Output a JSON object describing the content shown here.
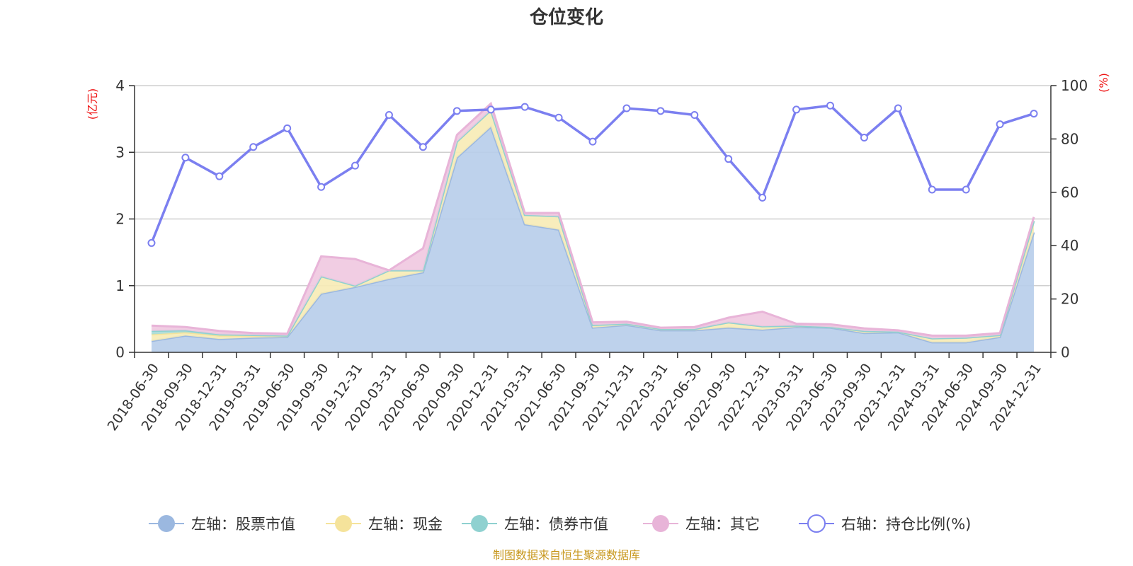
{
  "chart_data": {
    "type": "area",
    "title": "仓位变化",
    "source": "制图数据来自恒生聚源数据库",
    "left_axis": {
      "unit": "(亿元)",
      "ylim": [
        0,
        4
      ],
      "ticks": [
        "0",
        "1",
        "2",
        "3",
        "4"
      ]
    },
    "right_axis": {
      "unit": "(%)",
      "ylim": [
        0,
        100
      ],
      "ticks": [
        "0",
        "20",
        "40",
        "60",
        "80",
        "100"
      ]
    },
    "grid": true,
    "legend_position": "bottom",
    "categories": [
      "2018-06-30",
      "2018-09-30",
      "2018-12-31",
      "2019-03-31",
      "2019-06-30",
      "2019-09-30",
      "2019-12-31",
      "2020-03-31",
      "2020-06-30",
      "2020-09-30",
      "2020-12-31",
      "2021-03-31",
      "2021-06-30",
      "2021-09-30",
      "2021-12-31",
      "2022-03-31",
      "2022-06-30",
      "2022-09-30",
      "2022-12-31",
      "2023-03-31",
      "2023-06-30",
      "2023-09-30",
      "2023-12-31",
      "2024-03-31",
      "2024-06-30",
      "2024-09-30",
      "2024-12-31"
    ],
    "series": [
      {
        "name": "左轴：股票市值",
        "axis": "left",
        "type": "area",
        "color": "#9bb8e0",
        "fill": "#b7cdea",
        "values": [
          0.17,
          0.25,
          0.2,
          0.22,
          0.23,
          0.88,
          0.98,
          1.1,
          1.2,
          2.92,
          3.38,
          1.92,
          1.84,
          0.37,
          0.41,
          0.33,
          0.33,
          0.37,
          0.34,
          0.38,
          0.37,
          0.29,
          0.3,
          0.15,
          0.15,
          0.23,
          1.8
        ]
      },
      {
        "name": "左轴：现金",
        "axis": "left",
        "type": "area",
        "color": "#f5e39b",
        "fill": "#f7ebb5",
        "values": [
          0.1,
          0.05,
          0.05,
          0.03,
          0.02,
          0.26,
          0.02,
          0.13,
          0.03,
          0.24,
          0.25,
          0.14,
          0.2,
          0.04,
          0.02,
          0.02,
          0.02,
          0.08,
          0.05,
          0.02,
          0.01,
          0.03,
          0.01,
          0.06,
          0.07,
          0.03,
          0.17
        ]
      },
      {
        "name": "左轴：债券市值",
        "axis": "left",
        "type": "area",
        "color": "#8fd1d0",
        "fill": "#a9dcd9",
        "values": [
          0.05,
          0.03,
          0.02,
          0.01,
          0.0,
          0.0,
          0.0,
          0.0,
          0.0,
          0.0,
          0.0,
          0.0,
          0.0,
          0.0,
          0.0,
          0.0,
          0.0,
          0.0,
          0.0,
          0.0,
          0.0,
          0.0,
          0.0,
          0.0,
          0.0,
          0.0,
          0.0
        ]
      },
      {
        "name": "左轴：其它",
        "axis": "left",
        "type": "area",
        "color": "#e8b4d8",
        "fill": "#f0c8e0",
        "values": [
          0.08,
          0.05,
          0.05,
          0.03,
          0.03,
          0.3,
          0.4,
          0.0,
          0.33,
          0.1,
          0.1,
          0.03,
          0.05,
          0.04,
          0.03,
          0.02,
          0.03,
          0.07,
          0.22,
          0.03,
          0.04,
          0.04,
          0.02,
          0.04,
          0.03,
          0.03,
          0.06
        ]
      },
      {
        "name": "右轴：持仓比例(%)",
        "axis": "right",
        "type": "line",
        "color": "#7b7ff0",
        "values": [
          41,
          73,
          66,
          77,
          84,
          62,
          70,
          89,
          77,
          90.5,
          91,
          92,
          88,
          79,
          91.5,
          90.5,
          89,
          72.5,
          58,
          91,
          92.5,
          80.5,
          91.5,
          61,
          61,
          85.5,
          89.5
        ]
      }
    ]
  }
}
